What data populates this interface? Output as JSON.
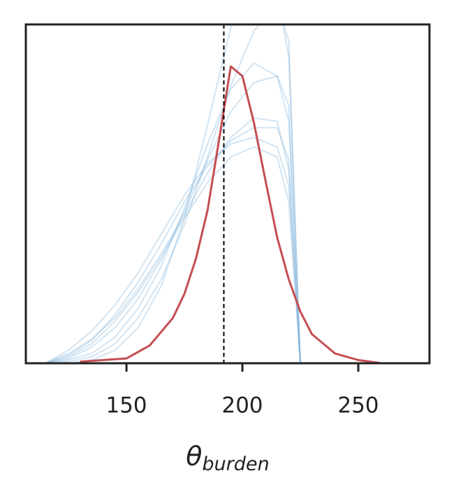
{
  "chart_data": {
    "type": "line",
    "xlabel": "θ",
    "xlabel_subscript": "burden",
    "xlim": [
      106.6,
      280.7
    ],
    "ylim": [
      0,
      0.021
    ],
    "xticks": [
      150,
      200,
      250
    ],
    "vline": {
      "x": 192,
      "color": "#000000",
      "style": "dashed"
    },
    "series": [
      {
        "color": "#7fb2db",
        "alpha": 0.35,
        "x": [
          115,
          125,
          135,
          145,
          155,
          165,
          175,
          185,
          195,
          205,
          215,
          220,
          225
        ],
        "values": [
          0,
          0.0006,
          0.0015,
          0.0028,
          0.0046,
          0.0068,
          0.0092,
          0.0118,
          0.014,
          0.0152,
          0.015,
          0.012,
          0
        ]
      },
      {
        "color": "#7fb2db",
        "alpha": 0.35,
        "x": [
          115,
          125,
          135,
          145,
          155,
          165,
          175,
          185,
          195,
          205,
          215,
          220,
          225
        ],
        "values": [
          0,
          0.0003,
          0.001,
          0.0022,
          0.004,
          0.0064,
          0.0094,
          0.0126,
          0.0156,
          0.0174,
          0.0178,
          0.016,
          0
        ]
      },
      {
        "color": "#7fb2db",
        "alpha": 0.35,
        "x": [
          115,
          125,
          135,
          145,
          155,
          165,
          175,
          185,
          195,
          205,
          215,
          220,
          225
        ],
        "values": [
          0,
          0.0008,
          0.002,
          0.0036,
          0.0056,
          0.008,
          0.0104,
          0.0124,
          0.0136,
          0.014,
          0.0134,
          0.011,
          0
        ]
      },
      {
        "color": "#7fb2db",
        "alpha": 0.35,
        "x": [
          115,
          125,
          135,
          145,
          155,
          165,
          175,
          185,
          195,
          205,
          215,
          220,
          225
        ],
        "values": [
          0,
          0.0001,
          0.0004,
          0.0012,
          0.0028,
          0.0052,
          0.0086,
          0.0128,
          0.0172,
          0.0206,
          0.0222,
          0.02,
          0
        ]
      },
      {
        "color": "#7fb2db",
        "alpha": 0.35,
        "x": [
          115,
          125,
          135,
          145,
          155,
          165,
          175,
          185,
          195,
          205,
          215,
          220,
          225
        ],
        "values": [
          0,
          0.0004,
          0.0012,
          0.0026,
          0.0044,
          0.0066,
          0.009,
          0.0112,
          0.0128,
          0.0134,
          0.0128,
          0.01,
          0
        ]
      },
      {
        "color": "#7fb2db",
        "alpha": 0.35,
        "x": [
          115,
          125,
          135,
          145,
          155,
          165,
          175,
          185,
          195,
          205,
          215,
          220,
          225
        ],
        "values": [
          0,
          0,
          0.0002,
          0.0008,
          0.0022,
          0.0048,
          0.009,
          0.0148,
          0.0208,
          0.024,
          0.023,
          0.019,
          0
        ]
      },
      {
        "color": "#7fb2db",
        "alpha": 0.35,
        "x": [
          115,
          125,
          135,
          145,
          155,
          165,
          175,
          185,
          195,
          205,
          215,
          220,
          225
        ],
        "values": [
          0,
          0.0005,
          0.0014,
          0.003,
          0.005,
          0.0074,
          0.01,
          0.0122,
          0.0138,
          0.0146,
          0.0146,
          0.0126,
          0
        ]
      },
      {
        "color": "#7fb2db",
        "alpha": 0.35,
        "x": [
          115,
          125,
          135,
          145,
          155,
          165,
          175,
          185,
          195,
          205,
          215,
          220,
          225
        ],
        "values": [
          0,
          0.0002,
          0.0006,
          0.0016,
          0.0034,
          0.006,
          0.0096,
          0.0136,
          0.017,
          0.0186,
          0.0178,
          0.015,
          0
        ]
      },
      {
        "color": "#c44e52",
        "alpha": 1,
        "x": [
          130,
          140,
          150,
          160,
          170,
          175,
          180,
          185,
          190,
          195,
          200,
          205,
          210,
          215,
          220,
          225,
          230,
          240,
          250,
          260
        ],
        "values": [
          0.0001,
          0.0002,
          0.0003,
          0.0011,
          0.0028,
          0.0043,
          0.0065,
          0.0095,
          0.0139,
          0.0184,
          0.0178,
          0.0149,
          0.0113,
          0.0078,
          0.0052,
          0.0032,
          0.0018,
          0.0006,
          0.0002,
          0
        ]
      }
    ]
  }
}
